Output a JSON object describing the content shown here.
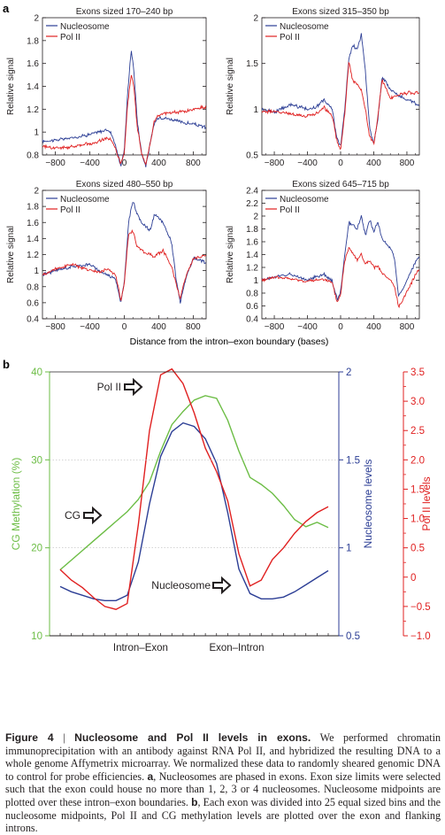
{
  "panel_a_letter": "a",
  "panel_b_letter": "b",
  "panel_a_xlabel": "Distance from the intron–exon boundary (bases)",
  "caption": {
    "figure": "Figure 4",
    "separator": "|",
    "title": "Nucleosome and Pol II levels in exons.",
    "body": " We performed chromatin immunoprecipitation with an antibody against RNA Pol II, and hybridized the resulting DNA to a whole genome Affymetrix microarray. We normalized these data to randomly sheared genomic DNA to control for probe efficiencies. ",
    "a_letter": "a",
    "a_text": ", Nucleosomes are phased in exons. Exon size limits were selected such that the exon could house no more than 1, 2, 3 or 4 nucleosomes. Nucleosome midpoints are plotted over these intron–exon boundaries. ",
    "b_letter": "b",
    "b_text": ", Each exon was divided into 25 equal sized bins and the nucleosome midpoints, Pol II and CG methylation levels are plotted over the exon and flanking introns."
  },
  "colors": {
    "nucleosome": "#2c3e95",
    "pol2": "#e02020",
    "cg": "#6cbd45",
    "axis": "#231f20"
  },
  "chart_data": [
    {
      "type": "line",
      "title": "Exons sized 170–240 bp",
      "ylabel": "Relative signal",
      "xlabel": "",
      "xlim": [
        -950,
        950
      ],
      "ylim": [
        0.8,
        2.0
      ],
      "xticks": [
        -800,
        -400,
        0,
        400,
        800
      ],
      "yticks": [
        0.8,
        1.0,
        1.2,
        1.4,
        1.6,
        1.8,
        2.0
      ],
      "legend": "top-left",
      "series": [
        {
          "name": "Nucleosome",
          "color": "#2c3e95",
          "x": [
            -950,
            -800,
            -600,
            -400,
            -300,
            -200,
            -150,
            -100,
            -40,
            0,
            40,
            80,
            110,
            150,
            200,
            250,
            300,
            350,
            400,
            500,
            600,
            700,
            800,
            950
          ],
          "y": [
            0.92,
            0.93,
            0.95,
            0.98,
            1.0,
            1.02,
            0.99,
            0.88,
            0.7,
            0.85,
            1.35,
            1.72,
            1.55,
            1.1,
            0.82,
            0.7,
            0.9,
            1.08,
            1.13,
            1.12,
            1.1,
            1.08,
            1.07,
            1.04
          ]
        },
        {
          "name": "Pol II",
          "color": "#e02020",
          "x": [
            -950,
            -800,
            -600,
            -400,
            -300,
            -200,
            -150,
            -100,
            -40,
            0,
            40,
            80,
            110,
            150,
            200,
            250,
            300,
            350,
            400,
            500,
            600,
            700,
            800,
            950
          ],
          "y": [
            0.88,
            0.86,
            0.87,
            0.9,
            0.92,
            0.95,
            0.93,
            0.85,
            0.72,
            0.82,
            1.25,
            1.5,
            1.4,
            1.05,
            0.82,
            0.72,
            0.9,
            1.1,
            1.15,
            1.17,
            1.17,
            1.18,
            1.2,
            1.22
          ]
        }
      ]
    },
    {
      "type": "line",
      "title": "Exons sized 315–350 bp",
      "ylabel": "Relative signal",
      "xlabel": "",
      "xlim": [
        -950,
        950
      ],
      "ylim": [
        0.5,
        2.0
      ],
      "xticks": [
        -800,
        -400,
        0,
        400,
        800
      ],
      "yticks": [
        0.5,
        1.0,
        1.5,
        2.0
      ],
      "legend": "top-left",
      "series": [
        {
          "name": "Nucleosome",
          "color": "#2c3e95",
          "x": [
            -950,
            -800,
            -600,
            -400,
            -300,
            -200,
            -100,
            -50,
            0,
            50,
            100,
            150,
            200,
            250,
            300,
            350,
            400,
            450,
            500,
            600,
            700,
            800,
            950
          ],
          "y": [
            1.0,
            0.97,
            1.05,
            1.0,
            1.02,
            1.1,
            1.0,
            0.7,
            0.6,
            1.0,
            1.55,
            1.7,
            1.65,
            1.82,
            1.4,
            0.8,
            0.62,
            0.9,
            1.35,
            1.22,
            1.15,
            1.1,
            1.05
          ]
        },
        {
          "name": "Pol II",
          "color": "#e02020",
          "x": [
            -950,
            -800,
            -600,
            -400,
            -300,
            -200,
            -100,
            -50,
            0,
            50,
            100,
            150,
            200,
            250,
            300,
            350,
            400,
            450,
            500,
            600,
            700,
            800,
            950
          ],
          "y": [
            0.98,
            0.97,
            0.95,
            0.92,
            0.95,
            1.02,
            0.92,
            0.68,
            0.55,
            0.95,
            1.52,
            1.3,
            1.28,
            1.2,
            1.0,
            0.7,
            0.62,
            0.92,
            1.32,
            1.12,
            1.15,
            1.18,
            1.18
          ]
        }
      ]
    },
    {
      "type": "line",
      "title": "Exons sized 480–550 bp",
      "ylabel": "Relative signal",
      "xlabel": "",
      "xlim": [
        -950,
        950
      ],
      "ylim": [
        0.4,
        2.0
      ],
      "xticks": [
        -800,
        -400,
        0,
        400,
        800
      ],
      "yticks": [
        0.4,
        0.6,
        0.8,
        1.0,
        1.2,
        1.4,
        1.6,
        1.8,
        2.0
      ],
      "legend": "top-left",
      "series": [
        {
          "name": "Nucleosome",
          "color": "#2c3e95",
          "x": [
            -950,
            -800,
            -600,
            -400,
            -300,
            -200,
            -100,
            -40,
            0,
            50,
            100,
            150,
            200,
            300,
            350,
            450,
            550,
            600,
            650,
            700,
            800,
            950
          ],
          "y": [
            0.95,
            1.0,
            1.05,
            1.08,
            1.0,
            0.95,
            0.9,
            0.6,
            0.85,
            1.6,
            1.88,
            1.7,
            1.6,
            1.5,
            1.7,
            1.6,
            1.35,
            0.9,
            0.6,
            0.85,
            1.15,
            1.1
          ]
        },
        {
          "name": "Pol II",
          "color": "#e02020",
          "x": [
            -950,
            -800,
            -600,
            -400,
            -300,
            -200,
            -100,
            -40,
            0,
            50,
            100,
            150,
            200,
            300,
            350,
            450,
            550,
            600,
            650,
            700,
            800,
            950
          ],
          "y": [
            0.95,
            1.02,
            1.08,
            1.0,
            0.98,
            1.02,
            0.95,
            0.62,
            0.85,
            1.45,
            1.5,
            1.3,
            1.25,
            1.2,
            1.18,
            1.25,
            1.05,
            0.85,
            0.65,
            0.88,
            1.15,
            1.2
          ]
        }
      ]
    },
    {
      "type": "line",
      "title": "Exons sized 645–715 bp",
      "ylabel": "Relative signal",
      "xlabel": "",
      "xlim": [
        -950,
        950
      ],
      "ylim": [
        0.4,
        2.4
      ],
      "xticks": [
        -800,
        -400,
        0,
        400,
        800
      ],
      "yticks": [
        0.4,
        0.6,
        0.8,
        1.0,
        1.2,
        1.4,
        1.6,
        1.8,
        2.0,
        2.2,
        2.4
      ],
      "legend": "top-left",
      "series": [
        {
          "name": "Nucleosome",
          "color": "#2c3e95",
          "x": [
            -950,
            -800,
            -600,
            -400,
            -300,
            -200,
            -100,
            -40,
            0,
            50,
            100,
            200,
            250,
            300,
            350,
            400,
            450,
            500,
            600,
            650,
            700,
            800,
            950
          ],
          "y": [
            1.0,
            1.05,
            1.1,
            1.0,
            1.05,
            1.1,
            0.98,
            0.7,
            0.82,
            1.4,
            1.9,
            1.8,
            2.0,
            1.7,
            1.95,
            1.75,
            1.9,
            1.65,
            1.5,
            1.35,
            0.75,
            1.0,
            1.4
          ]
        },
        {
          "name": "Pol II",
          "color": "#e02020",
          "x": [
            -950,
            -800,
            -600,
            -400,
            -300,
            -200,
            -100,
            -40,
            0,
            50,
            100,
            200,
            250,
            300,
            350,
            400,
            450,
            500,
            600,
            650,
            700,
            800,
            950
          ],
          "y": [
            1.0,
            1.05,
            1.02,
            0.98,
            1.0,
            1.02,
            0.95,
            0.65,
            0.78,
            1.3,
            1.52,
            1.32,
            1.4,
            1.25,
            1.3,
            1.2,
            1.22,
            1.1,
            1.0,
            0.9,
            0.58,
            0.82,
            1.2
          ]
        }
      ]
    },
    {
      "type": "line",
      "title": "",
      "xlabel": "",
      "categories": [
        "Intron–Exon",
        "Exon–Intron"
      ],
      "x": [
        1,
        2,
        3,
        4,
        5,
        6,
        7,
        8,
        9,
        10,
        11,
        12,
        13,
        14,
        15,
        16,
        17,
        18,
        19,
        20,
        21,
        22,
        23,
        24,
        25
      ],
      "series": [
        {
          "name": "CG",
          "axis": "CG Methylation (%)",
          "ylim": [
            10,
            40
          ],
          "yticks": [
            10,
            20,
            30,
            40
          ],
          "color": "#6cbd45",
          "values": [
            17.5,
            18.6,
            19.7,
            20.8,
            21.9,
            23.0,
            24.1,
            25.5,
            27.5,
            31.0,
            34.0,
            35.5,
            36.8,
            37.3,
            37.0,
            34.5,
            31.0,
            28.0,
            27.2,
            26.2,
            24.8,
            23.2,
            22.4,
            22.9,
            22.3
          ]
        },
        {
          "name": "Nucleosome",
          "axis": "Nucleosome levels",
          "ylim": [
            0.5,
            2.0
          ],
          "yticks": [
            0.5,
            1.0,
            1.5,
            2.0
          ],
          "color": "#2c3e95",
          "values": [
            0.78,
            0.75,
            0.73,
            0.71,
            0.7,
            0.7,
            0.73,
            0.92,
            1.25,
            1.52,
            1.66,
            1.71,
            1.69,
            1.62,
            1.48,
            1.2,
            0.88,
            0.74,
            0.71,
            0.71,
            0.72,
            0.75,
            0.79,
            0.83,
            0.87
          ]
        },
        {
          "name": "Pol II",
          "axis": "Pol II levels",
          "ylim": [
            -1.0,
            3.5
          ],
          "yticks": [
            -1.0,
            -0.5,
            0,
            0.5,
            1.0,
            1.5,
            2.0,
            2.5,
            3.0,
            3.5
          ],
          "color": "#e02020",
          "values": [
            0.13,
            -0.05,
            -0.18,
            -0.35,
            -0.5,
            -0.55,
            -0.45,
            0.9,
            2.5,
            3.45,
            3.55,
            3.3,
            2.8,
            2.2,
            1.8,
            1.3,
            0.4,
            -0.15,
            -0.05,
            0.3,
            0.5,
            0.75,
            0.95,
            1.1,
            1.2
          ]
        }
      ],
      "annotations": [
        "Pol II",
        "CG",
        "Nucleosome"
      ]
    }
  ]
}
